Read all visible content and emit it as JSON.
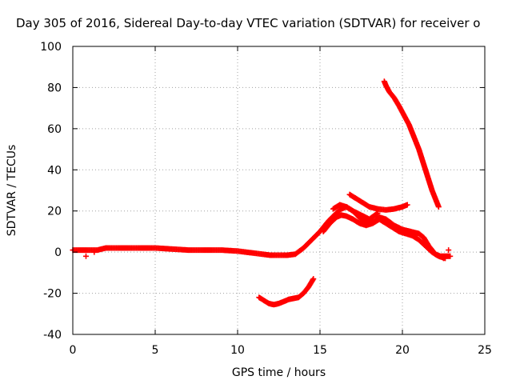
{
  "chart_data": {
    "type": "scatter",
    "title": "Day 305 of 2016, Sidereal Day-to-day VTEC variation (SDTVAR) for receiver o",
    "xlabel": "GPS time / hours",
    "ylabel": "SDTVAR / TECUs",
    "xlim": [
      0,
      25
    ],
    "ylim": [
      -40,
      100
    ],
    "xticks": [
      0,
      5,
      10,
      15,
      20,
      25
    ],
    "yticks": [
      -40,
      -20,
      0,
      20,
      40,
      60,
      80,
      100
    ],
    "grid": true,
    "marker": "plus",
    "color": "#ff0000",
    "series": [
      {
        "x": [
          0.0,
          0.5,
          1.0,
          1.5,
          2.0,
          3.0,
          4.0,
          5.0,
          6.0,
          7.0,
          8.0,
          9.0,
          10.0,
          10.5,
          11.0,
          11.5,
          12.0,
          12.5,
          13.0,
          13.5,
          14.0,
          14.5,
          15.0,
          15.5,
          16.0,
          16.3,
          16.6,
          17.0,
          17.5,
          18.0,
          18.3,
          18.6,
          19.0,
          19.5,
          20.0,
          20.5,
          21.0,
          21.3,
          21.6,
          22.0,
          22.3,
          22.6,
          22.9
        ],
        "y": [
          1,
          1,
          1,
          1,
          2,
          2,
          2,
          2,
          1.5,
          1,
          1,
          1,
          0.5,
          0,
          -0.5,
          -1,
          -1.5,
          -1.5,
          -1.5,
          -1,
          2,
          6,
          10,
          15,
          19,
          21,
          22,
          20,
          16,
          14,
          15,
          17,
          16,
          13,
          11,
          10,
          9,
          7,
          3,
          -1,
          -2,
          -2,
          -2
        ]
      },
      {
        "x": [
          15.2,
          15.6,
          16.0,
          16.3,
          16.6,
          17.0,
          17.4,
          17.8,
          18.2,
          18.6,
          19.0,
          19.4,
          19.8,
          20.2,
          20.6,
          21.0,
          21.4,
          21.8,
          22.2,
          22.6
        ],
        "y": [
          10,
          14,
          17,
          18,
          17.5,
          16,
          14,
          13,
          14,
          16,
          14,
          12,
          10,
          9,
          8,
          6,
          3,
          0,
          -2,
          -3
        ]
      },
      {
        "x": [
          16.8,
          17.2,
          17.6,
          18.0,
          18.5,
          19.0,
          19.5,
          20.0,
          20.3
        ],
        "y": [
          28,
          26,
          24,
          22,
          21,
          20.5,
          21,
          22,
          23
        ]
      },
      {
        "x": [
          15.8,
          16.2,
          16.6,
          17.0,
          17.5,
          18.0,
          18.5
        ],
        "y": [
          21,
          23,
          22,
          20,
          18,
          16,
          19
        ]
      },
      {
        "x": [
          18.9,
          19.0,
          19.2,
          19.5,
          19.8,
          20.0,
          20.2,
          20.4,
          20.6,
          20.8,
          21.0,
          21.2,
          21.4,
          21.6,
          21.8,
          22.0,
          22.2
        ],
        "y": [
          83,
          81,
          78,
          75,
          71,
          68,
          65,
          62,
          58,
          54,
          50,
          45,
          40,
          35,
          30,
          26,
          22
        ]
      },
      {
        "x": [
          11.3,
          11.6,
          11.9,
          12.2,
          12.5,
          12.8,
          13.1,
          13.4,
          13.7,
          14.0,
          14.3,
          14.6
        ],
        "y": [
          -22,
          -23.5,
          -25,
          -25.5,
          -25,
          -24,
          -23,
          -22.5,
          -22,
          -20,
          -17,
          -13
        ]
      },
      {
        "x": [
          0.8,
          1.3,
          22.5,
          22.8
        ],
        "y": [
          -2,
          0,
          -3,
          1
        ]
      }
    ]
  }
}
